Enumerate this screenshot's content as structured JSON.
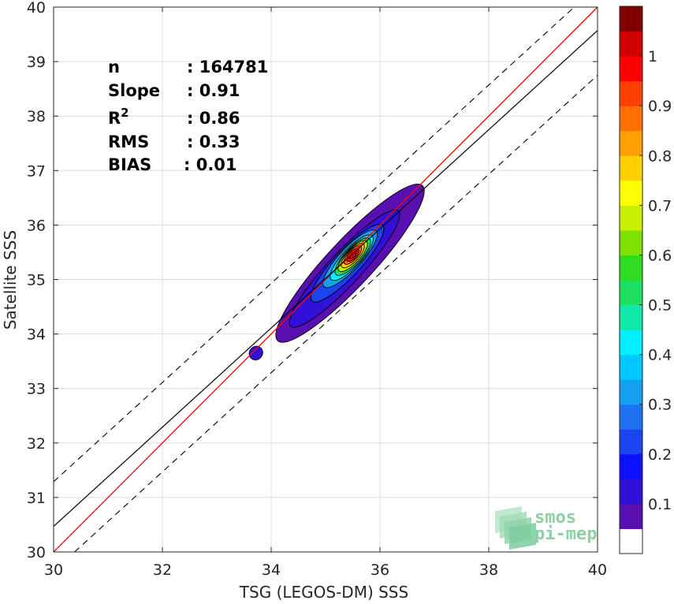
{
  "chart_data": {
    "type": "contour-scatter",
    "xlabel": "TSG (LEGOS-DM) SSS",
    "ylabel": "Satellite SSS",
    "xlim": [
      30,
      40
    ],
    "ylim": [
      30,
      40
    ],
    "xticks": [
      "30",
      "32",
      "34",
      "36",
      "38",
      "40"
    ],
    "yticks": [
      "30",
      "31",
      "32",
      "33",
      "34",
      "35",
      "36",
      "37",
      "38",
      "39",
      "40"
    ],
    "grid": true,
    "stats": [
      {
        "label": "n",
        "value": ": 164781"
      },
      {
        "label": "Slope",
        "value": ": 0.91"
      },
      {
        "label": "R",
        "sup": "2",
        "value": ": 0.86"
      },
      {
        "label": "RMS",
        "value": ": 0.33"
      },
      {
        "label": "BIAS",
        "value": ": 0.01"
      }
    ],
    "lines": {
      "identity": {
        "color": "#ff0000",
        "slope": 1,
        "intercept": 0
      },
      "fit": {
        "color": "#000000",
        "slope": 0.91,
        "intercept": 3.17
      },
      "bounds": {
        "color": "#000000",
        "dash": true,
        "slope": 0.91,
        "offsets": [
          0.82,
          -0.82
        ]
      }
    },
    "density_peak": {
      "x": 35.5,
      "y": 35.45
    },
    "colorbar": {
      "ticks": [
        "0.1",
        "0.2",
        "0.3",
        "0.4",
        "0.5",
        "0.6",
        "0.7",
        "0.8",
        "0.9",
        "1"
      ],
      "levels": [
        0.05,
        0.1,
        0.15,
        0.2,
        0.25,
        0.3,
        0.35,
        0.4,
        0.45,
        0.5,
        0.55,
        0.6,
        0.65,
        0.7,
        0.75,
        0.8,
        0.85,
        0.9,
        0.95,
        1.0
      ],
      "colors": [
        "#ffffff",
        "#5a0fb0",
        "#3210d8",
        "#0c10ff",
        "#1a44f0",
        "#1e72f0",
        "#14a0f0",
        "#00c8ff",
        "#00f0ff",
        "#10e8a8",
        "#1ee060",
        "#2fdc20",
        "#80e000",
        "#c8f000",
        "#ffff00",
        "#ffd000",
        "#ffa000",
        "#ff7000",
        "#ff4000",
        "#ff0000",
        "#d00000",
        "#800000"
      ]
    },
    "contour_levels": [
      {
        "level": 0.05,
        "color": "#5a0fb0",
        "center": [
          35.45,
          35.3
        ],
        "semi_major": 1.95,
        "semi_minor": 0.42
      },
      {
        "level": 0.1,
        "color": "#3210d8",
        "center": [
          35.35,
          35.2
        ],
        "semi_major": 1.45,
        "semi_minor": 0.3
      },
      {
        "level": 0.2,
        "color": "#1a44f0",
        "center": [
          35.4,
          35.3
        ],
        "semi_major": 0.95,
        "semi_minor": 0.24
      },
      {
        "level": 0.3,
        "color": "#14a0f0",
        "center": [
          35.45,
          35.38
        ],
        "semi_major": 0.7,
        "semi_minor": 0.2
      },
      {
        "level": 0.4,
        "color": "#00f0ff",
        "center": [
          35.48,
          35.4
        ],
        "semi_major": 0.55,
        "semi_minor": 0.17
      },
      {
        "level": 0.5,
        "color": "#1ee060",
        "center": [
          35.5,
          35.42
        ],
        "semi_major": 0.45,
        "semi_minor": 0.15
      },
      {
        "level": 0.6,
        "color": "#c8f000",
        "center": [
          35.5,
          35.43
        ],
        "semi_major": 0.37,
        "semi_minor": 0.13
      },
      {
        "level": 0.7,
        "color": "#ffd000",
        "center": [
          35.5,
          35.44
        ],
        "semi_major": 0.29,
        "semi_minor": 0.11
      },
      {
        "level": 0.8,
        "color": "#ff7000",
        "center": [
          35.5,
          35.45
        ],
        "semi_major": 0.22,
        "semi_minor": 0.09
      },
      {
        "level": 0.9,
        "color": "#ff0000",
        "center": [
          35.5,
          35.45
        ],
        "semi_major": 0.15,
        "semi_minor": 0.07
      },
      {
        "level": 0.95,
        "color": "#d00000",
        "center": [
          35.5,
          35.45
        ],
        "semi_major": 0.08,
        "semi_minor": 0.045
      }
    ],
    "small_blob": {
      "center": [
        33.72,
        33.65
      ],
      "semi_major": 0.13,
      "semi_minor": 0.12,
      "color": "#3210d8"
    }
  },
  "logo": {
    "line1": "smos",
    "line2": "pi-mep"
  }
}
